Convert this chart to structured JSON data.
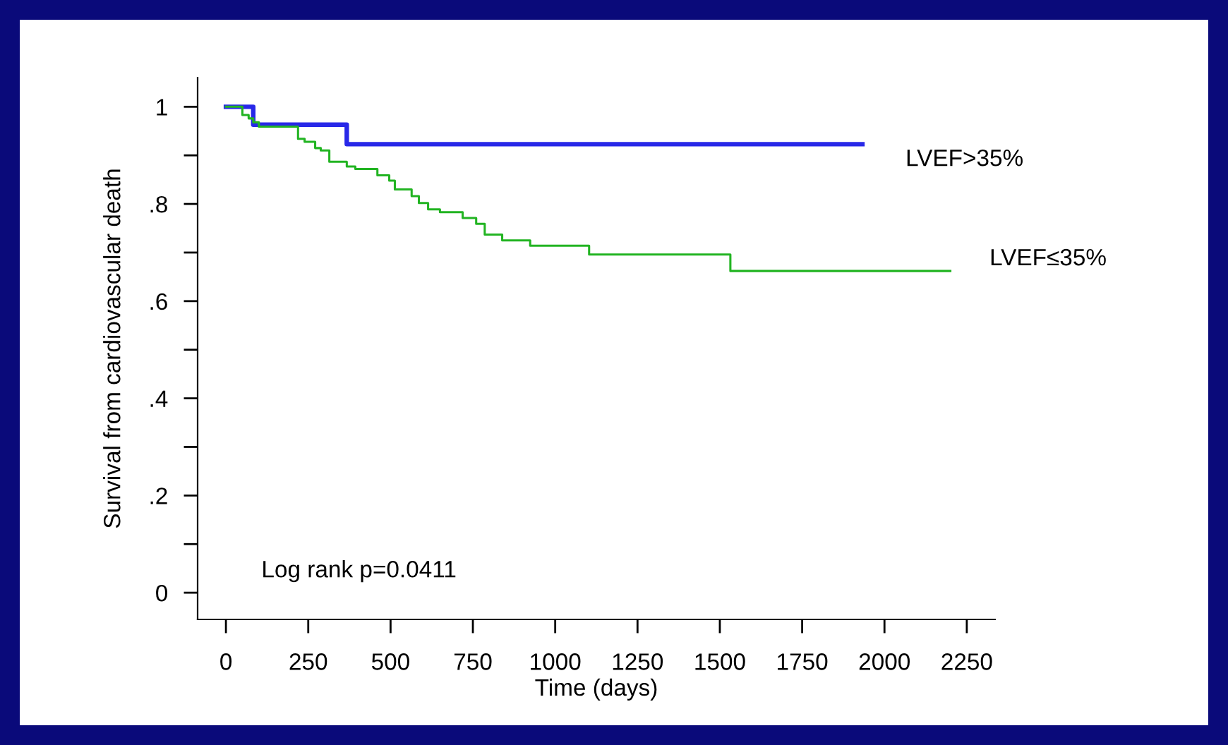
{
  "chart_data": {
    "type": "step",
    "xlabel": "Time (days)",
    "ylabel": "Survival from cardiovascular death",
    "xlim": [
      -86,
      2336
    ],
    "ylim": [
      -0.055,
      1.06
    ],
    "xticks": [
      0,
      250,
      500,
      750,
      1000,
      1250,
      1500,
      1750,
      2000,
      2250
    ],
    "yticks": [
      {
        "value": 0,
        "label": "0"
      },
      {
        "value": 0.1,
        "label": null
      },
      {
        "value": 0.2,
        "label": ".2"
      },
      {
        "value": 0.3,
        "label": null
      },
      {
        "value": 0.4,
        "label": ".4"
      },
      {
        "value": 0.5,
        "label": null
      },
      {
        "value": 0.6,
        "label": ".6"
      },
      {
        "value": 0.7,
        "label": null
      },
      {
        "value": 0.8,
        "label": ".8"
      },
      {
        "value": 0.9,
        "label": null
      },
      {
        "value": 1,
        "label": "1"
      }
    ],
    "grid": false,
    "legend": false,
    "line_style": "solid",
    "marker": "none",
    "annotations": [
      "Log rank p=0.0411"
    ],
    "series": [
      {
        "name": "LVEF>35%",
        "color": "#2828e8",
        "x": [
          0,
          83,
          367,
          1933
        ],
        "values": [
          1.0,
          0.963,
          0.923,
          0.923
        ]
      },
      {
        "name": "LVEF≤35%",
        "color": "#22b422",
        "x": [
          0,
          50,
          69,
          83,
          100,
          219,
          239,
          271,
          288,
          314,
          367,
          393,
          460,
          496,
          513,
          564,
          586,
          614,
          650,
          719,
          760,
          786,
          839,
          924,
          1103,
          1532,
          2200
        ],
        "values": [
          1.0,
          0.983,
          0.976,
          0.968,
          0.959,
          0.934,
          0.928,
          0.915,
          0.91,
          0.887,
          0.877,
          0.872,
          0.859,
          0.848,
          0.83,
          0.816,
          0.802,
          0.789,
          0.783,
          0.771,
          0.759,
          0.737,
          0.725,
          0.714,
          0.696,
          0.662,
          0.662
        ]
      }
    ]
  }
}
